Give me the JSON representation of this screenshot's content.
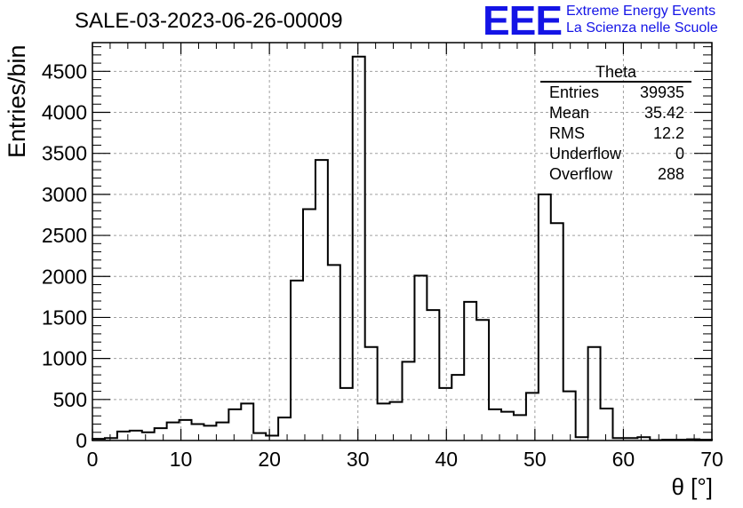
{
  "title": "SALE-03-2023-06-26-00009",
  "logo": {
    "mark": "EEE",
    "line1": "Extreme Energy Events",
    "line2": "La Scienza nelle Scuole",
    "color": "#1414e6"
  },
  "stats": {
    "name": "Theta",
    "rows": [
      {
        "label": "Entries",
        "value": "39935"
      },
      {
        "label": "Mean",
        "value": "35.42"
      },
      {
        "label": "RMS",
        "value": "12.2"
      },
      {
        "label": "Underflow",
        "value": "0"
      },
      {
        "label": "Overflow",
        "value": "288"
      }
    ]
  },
  "chart_data": {
    "type": "bar",
    "style": "step-histogram",
    "xlabel": "θ [°]",
    "ylabel": "Entries/bin",
    "xlim": [
      0,
      70
    ],
    "ylim": [
      0,
      4850
    ],
    "bin_width": 1.4,
    "x_ticks": [
      0,
      10,
      20,
      30,
      40,
      50,
      60,
      70
    ],
    "y_ticks": [
      0,
      500,
      1000,
      1500,
      2000,
      2500,
      3000,
      3500,
      4000,
      4500
    ],
    "grid": true,
    "values": [
      20,
      30,
      110,
      120,
      100,
      150,
      220,
      250,
      200,
      180,
      220,
      380,
      450,
      90,
      60,
      280,
      1950,
      2820,
      3420,
      2140,
      640,
      4680,
      1140,
      450,
      470,
      960,
      2010,
      1590,
      640,
      800,
      1690,
      1470,
      380,
      350,
      310,
      580,
      3000,
      2650,
      600,
      40,
      1140,
      390,
      30,
      30,
      40,
      5,
      10,
      10,
      15,
      10
    ]
  }
}
